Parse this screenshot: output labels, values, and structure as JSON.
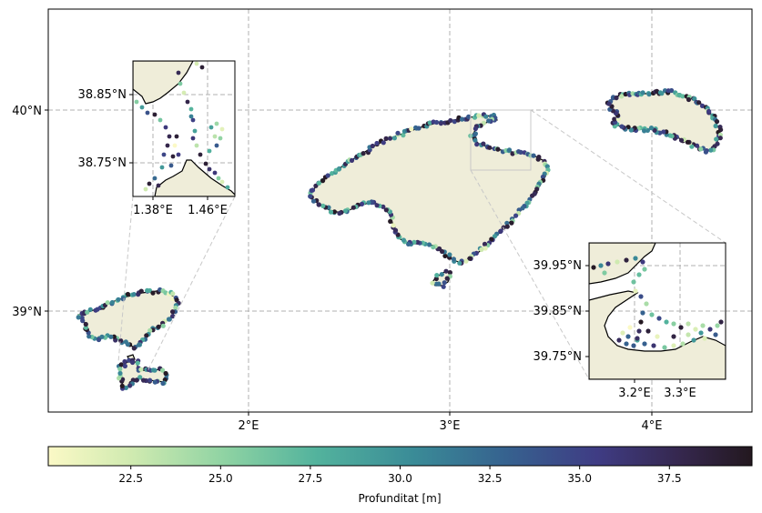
{
  "map": {
    "lon_labels": [
      "2°E",
      "3°E",
      "4°E"
    ],
    "lat_labels": [
      "40°N",
      "39°N"
    ],
    "land_color": "#efedd9",
    "grid_color": "#b0b0b0"
  },
  "inset_ibiza": {
    "lat_labels": [
      "38.85°N",
      "38.75°N"
    ],
    "lon_labels": [
      "1.38°E",
      "1.46°E"
    ]
  },
  "inset_mallorca": {
    "lat_labels": [
      "39.95°N",
      "39.85°N",
      "39.75°N"
    ],
    "lon_labels": [
      "3.2°E",
      "3.3°E"
    ]
  },
  "colorbar": {
    "label": "Profunditat [m]",
    "ticks": [
      "22.5",
      "25.0",
      "27.5",
      "30.0",
      "32.5",
      "35.0",
      "37.5"
    ],
    "range": [
      20.2,
      39.8
    ],
    "colormap": [
      "#fbf9c6",
      "#cfeab0",
      "#8fd3a3",
      "#53b39d",
      "#3a8b97",
      "#36628f",
      "#3f3c84",
      "#35274d",
      "#23181f"
    ]
  }
}
